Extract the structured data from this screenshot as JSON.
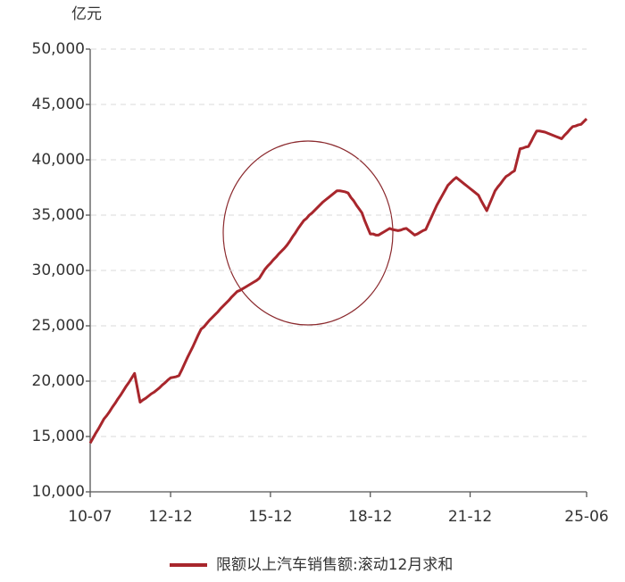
{
  "chart_data": {
    "type": "line",
    "y_unit": "亿元",
    "categories": [
      "10-07",
      null,
      null,
      null,
      null,
      null,
      null,
      null,
      null,
      null,
      null,
      null,
      null,
      null,
      null,
      null,
      null,
      null,
      null,
      null,
      null,
      null,
      null,
      null,
      null,
      null,
      null,
      null,
      null,
      "12-12",
      null,
      null,
      null,
      null,
      null,
      null,
      null,
      null,
      null,
      null,
      null,
      null,
      null,
      null,
      null,
      null,
      null,
      null,
      null,
      null,
      null,
      null,
      null,
      null,
      null,
      null,
      null,
      null,
      null,
      null,
      null,
      null,
      null,
      null,
      null,
      "15-12",
      null,
      null,
      null,
      null,
      null,
      null,
      null,
      null,
      null,
      null,
      null,
      null,
      null,
      null,
      null,
      null,
      null,
      null,
      null,
      null,
      null,
      null,
      null,
      null,
      null,
      null,
      null,
      null,
      null,
      null,
      null,
      null,
      null,
      null,
      null,
      "18-12",
      null,
      null,
      null,
      null,
      null,
      null,
      null,
      null,
      null,
      null,
      null,
      null,
      null,
      null,
      null,
      null,
      null,
      null,
      null,
      null,
      null,
      null,
      null,
      null,
      null,
      null,
      null,
      null,
      null,
      null,
      null,
      null,
      null,
      null,
      null,
      "21-12",
      null,
      null,
      null,
      null,
      null,
      null,
      null,
      null,
      null,
      null,
      null,
      null,
      null,
      null,
      null,
      null,
      null,
      null,
      null,
      null,
      null,
      null,
      null,
      null,
      null,
      null,
      null,
      null,
      null,
      null,
      null,
      null,
      null,
      null,
      null,
      null,
      null,
      null,
      null,
      null,
      null,
      "25-06"
    ],
    "series": [
      {
        "name": "限额以上汽车销售额:滚动12月求和",
        "color": "#a8262c",
        "values": [
          14400,
          14850,
          15300,
          15700,
          16150,
          16600,
          16900,
          17250,
          17650,
          18000,
          18400,
          18750,
          19150,
          19550,
          19900,
          20300,
          20700,
          19400,
          18100,
          18300,
          18450,
          18650,
          18850,
          19000,
          19200,
          19400,
          19650,
          19850,
          20100,
          20300,
          20350,
          20400,
          20500,
          21000,
          21550,
          22100,
          22600,
          23100,
          23650,
          24200,
          24700,
          24900,
          25200,
          25500,
          25750,
          26000,
          26250,
          26550,
          26800,
          27050,
          27300,
          27600,
          27850,
          28100,
          28200,
          28350,
          28500,
          28650,
          28800,
          28950,
          29100,
          29300,
          29700,
          30100,
          30400,
          30650,
          30950,
          31200,
          31500,
          31750,
          32000,
          32300,
          32650,
          33050,
          33400,
          33800,
          34150,
          34500,
          34700,
          35000,
          35200,
          35450,
          35700,
          35950,
          36200,
          36400,
          36600,
          36800,
          37000,
          37200,
          37200,
          37150,
          37100,
          37000,
          36600,
          36300,
          35900,
          35550,
          35200,
          34500,
          33900,
          33300,
          33300,
          33200,
          33200,
          33350,
          33500,
          33650,
          33800,
          33700,
          33650,
          33600,
          33650,
          33750,
          33800,
          33600,
          33400,
          33200,
          33300,
          33450,
          33600,
          33700,
          34250,
          34800,
          35350,
          35900,
          36350,
          36800,
          37250,
          37700,
          37950,
          38200,
          38400,
          38200,
          38000,
          37800,
          37600,
          37400,
          37200,
          37000,
          36800,
          36300,
          35850,
          35400,
          36000,
          36600,
          37200,
          37550,
          37850,
          38200,
          38500,
          38650,
          38850,
          39000,
          40000,
          41000,
          41050,
          41150,
          41200,
          41650,
          42150,
          42600,
          42600,
          42550,
          42500,
          42400,
          42300,
          42200,
          42100,
          42000,
          41900,
          42200,
          42450,
          42750,
          43000,
          43050,
          43150,
          43200,
          43450,
          43700
        ]
      }
    ],
    "ylim": [
      10000,
      50000
    ],
    "yticks": [
      {
        "value": 10000,
        "label": "10,000"
      },
      {
        "value": 15000,
        "label": "15,000"
      },
      {
        "value": 20000,
        "label": "20,000"
      },
      {
        "value": 25000,
        "label": "25,000"
      },
      {
        "value": 30000,
        "label": "30,000"
      },
      {
        "value": 35000,
        "label": "35,000"
      },
      {
        "value": 40000,
        "label": "40,000"
      },
      {
        "value": 45000,
        "label": "45,000"
      },
      {
        "value": 50000,
        "label": "50,000"
      }
    ],
    "grid": true,
    "legend": "bottom"
  }
}
